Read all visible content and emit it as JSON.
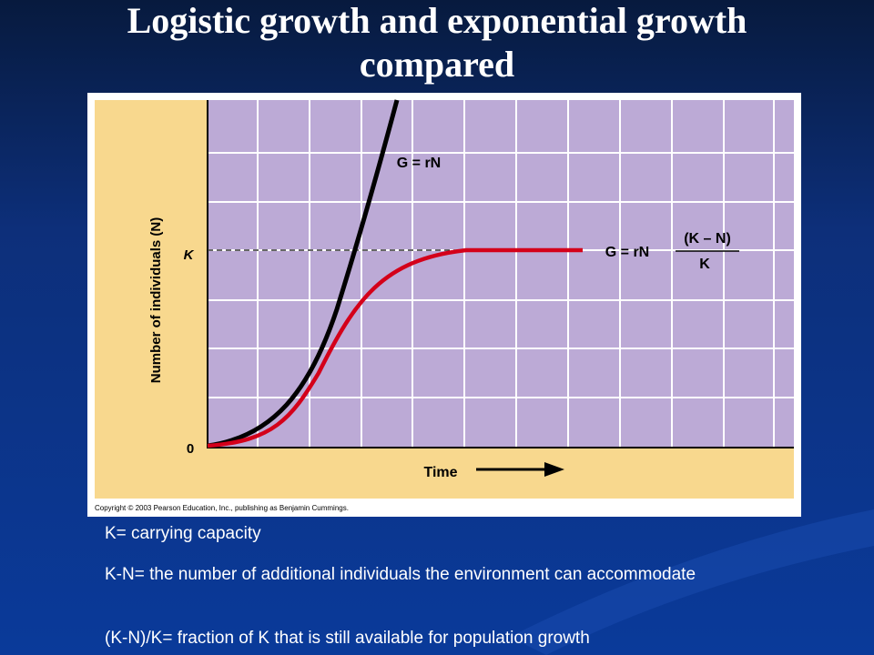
{
  "title": "Logistic growth and exponential growth compared",
  "figure": {
    "y_axis_label": "Number of individuals (N)",
    "x_axis_label": "Time",
    "k_label": "K",
    "zero_label": "0",
    "exponential_label": "G = rN",
    "logistic_label": "G = rN",
    "logistic_fraction_top": "(K – N)",
    "logistic_fraction_bottom": "K",
    "copyright": "Copyright © 2003 Pearson Education, Inc., publishing as Benjamin Cummings."
  },
  "notes": [
    "K= carrying capacity",
    "K-N= the number of additional individuals the environment can accommodate",
    "(K-N)/K= fraction of K that is still available for population growth"
  ]
}
